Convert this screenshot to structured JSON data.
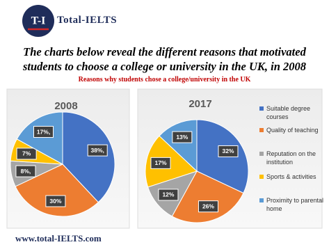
{
  "header": {
    "logo": "T-I",
    "brand": "Total-IELTS",
    "title": "The charts below reveal the different reasons that motivated students to choose a college or university in the UK, in 2008",
    "subtitle": "Reasons why students chose a college/university in the UK"
  },
  "footer": {
    "url": "www.total-IELTS.com"
  },
  "chart_data": [
    {
      "type": "pie",
      "title": "2008",
      "categories": [
        "Suitable degree courses",
        "Quality of teaching",
        "Reputation on the institution",
        "Sports & activities",
        "Proximity to parental home"
      ],
      "values": [
        38,
        30,
        8,
        7,
        17
      ],
      "value_labels": [
        "38%,",
        "30%",
        "8%,",
        "7%",
        "17%,"
      ],
      "colors": [
        "#4472c4",
        "#ed7d31",
        "#a5a5a5",
        "#ffc000",
        "#5b9bd5"
      ],
      "legend": false
    },
    {
      "type": "pie",
      "title": "2017",
      "categories": [
        "Suitable degree courses",
        "Quality of teaching",
        "Reputation on the institution",
        "Sports & activities",
        "Proximity to parental home"
      ],
      "values": [
        32,
        26,
        12,
        17,
        13
      ],
      "value_labels": [
        "32%",
        "26%",
        "12%",
        "17%",
        "13%"
      ],
      "colors": [
        "#4472c4",
        "#ed7d31",
        "#a5a5a5",
        "#ffc000",
        "#5b9bd5"
      ],
      "legend": "right"
    }
  ]
}
